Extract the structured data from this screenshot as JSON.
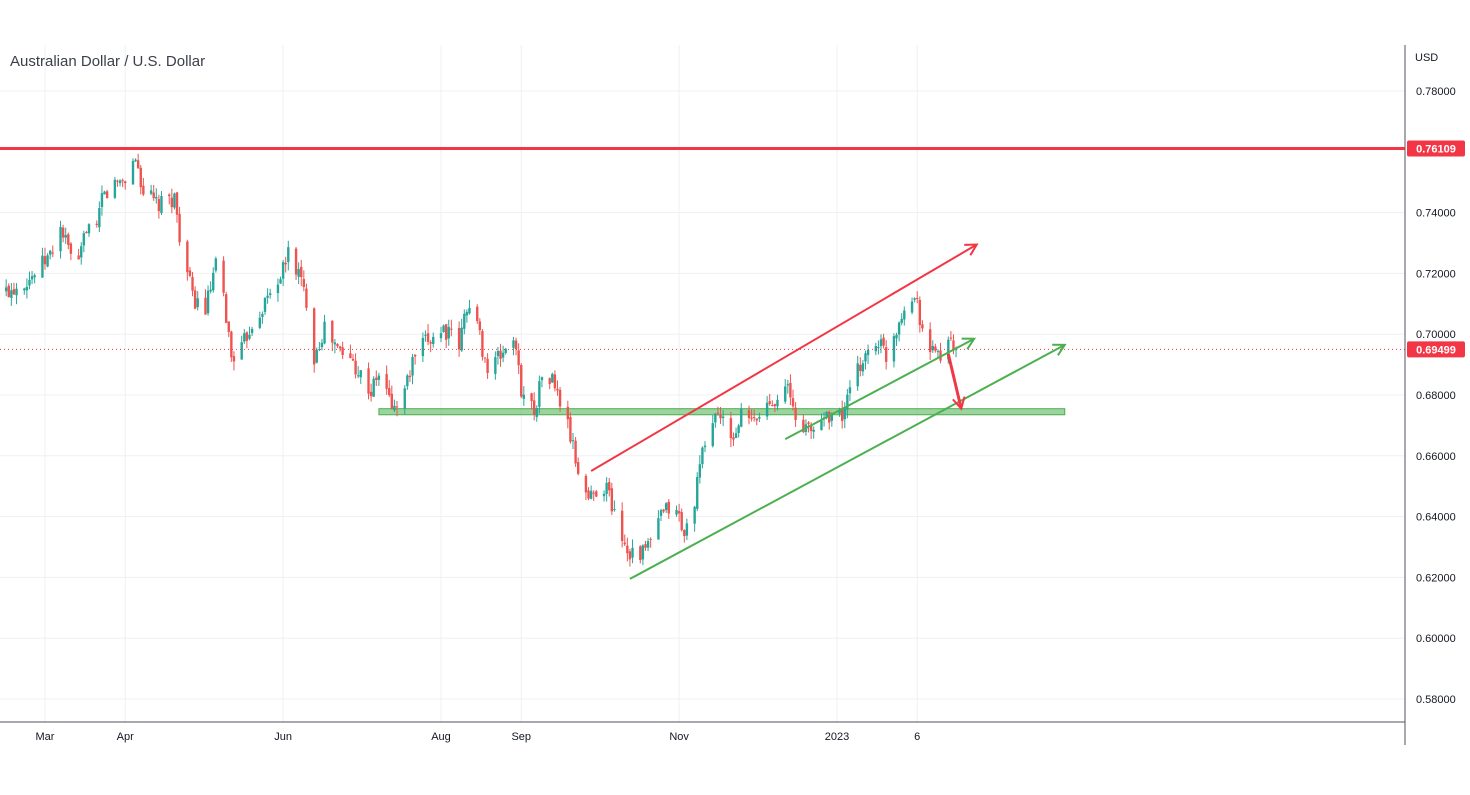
{
  "chart_data": {
    "type": "candlestick",
    "title": "Australian Dollar / U.S. Dollar",
    "currency": "USD",
    "y_ticks": [
      "0.78000",
      "0.76109",
      "0.74000",
      "0.72000",
      "0.70000",
      "0.69499",
      "0.68000",
      "0.66000",
      "0.64000",
      "0.62000",
      "0.60000",
      "0.58000"
    ],
    "y_tick_values": [
      0.78,
      0.74,
      0.72,
      0.7,
      0.68,
      0.66,
      0.64,
      0.62,
      0.6,
      0.58
    ],
    "ylim": [
      0.572,
      0.7985
    ],
    "x_ticks": [
      {
        "label": "Mar",
        "date": "2022-03-01"
      },
      {
        "label": "Apr",
        "date": "2022-04-01"
      },
      {
        "label": "Jun",
        "date": "2022-06-01"
      },
      {
        "label": "Aug",
        "date": "2022-08-01"
      },
      {
        "label": "Sep",
        "date": "2022-09-01"
      },
      {
        "label": "Nov",
        "date": "2022-11-01"
      },
      {
        "label": "2023",
        "date": "2023-01-01"
      },
      {
        "label": "6",
        "date": "2023-02-01"
      }
    ],
    "resistance_level": {
      "value": 0.76109,
      "label": "0.76109",
      "color": "#f23645"
    },
    "current_price": {
      "value": 0.69499,
      "label": "0.69499",
      "color": "#f23645"
    },
    "support_zone": {
      "low": 0.6735,
      "high": 0.6755,
      "start": "2022-07-08",
      "end": "2023-03-30",
      "color": "#4caf50"
    },
    "trendlines": [
      {
        "name": "upper-channel",
        "color": "#f23645",
        "from": {
          "date": "2022-09-28",
          "price": 0.655
        },
        "to": {
          "date": "2023-02-24",
          "price": 0.7295
        },
        "arrow": true
      },
      {
        "name": "inner-support",
        "color": "#4caf50",
        "from": {
          "date": "2022-12-12",
          "price": 0.6655
        },
        "to": {
          "date": "2023-02-23",
          "price": 0.6985
        },
        "arrow": true
      },
      {
        "name": "lower-support",
        "color": "#4caf50",
        "from": {
          "date": "2022-10-13",
          "price": 0.6195
        },
        "to": {
          "date": "2023-03-30",
          "price": 0.6965
        },
        "arrow": true
      }
    ],
    "projection": {
      "color": "#f23645",
      "from": {
        "date": "2023-02-13",
        "price": 0.6935
      },
      "to": {
        "date": "2023-02-18",
        "price": 0.6755
      }
    },
    "price_path": [
      [
        "2022-02-14",
        0.714
      ],
      [
        "2022-02-24",
        0.719
      ],
      [
        "2022-03-03",
        0.726
      ],
      [
        "2022-03-07",
        0.735
      ],
      [
        "2022-03-10",
        0.728
      ],
      [
        "2022-03-14",
        0.722
      ],
      [
        "2022-03-17",
        0.736
      ],
      [
        "2022-03-21",
        0.733
      ],
      [
        "2022-03-23",
        0.745
      ],
      [
        "2022-03-29",
        0.75
      ],
      [
        "2022-04-01",
        0.751
      ],
      [
        "2022-04-05",
        0.758
      ],
      [
        "2022-04-08",
        0.747
      ],
      [
        "2022-04-14",
        0.742
      ],
      [
        "2022-04-20",
        0.745
      ],
      [
        "2022-04-22",
        0.733
      ],
      [
        "2022-04-27",
        0.712
      ],
      [
        "2022-05-02",
        0.708
      ],
      [
        "2022-05-06",
        0.722
      ],
      [
        "2022-05-09",
        0.712
      ],
      [
        "2022-05-12",
        0.693
      ],
      [
        "2022-05-16",
        0.695
      ],
      [
        "2022-05-19",
        0.702
      ],
      [
        "2022-05-24",
        0.709
      ],
      [
        "2022-06-01",
        0.721
      ],
      [
        "2022-06-03",
        0.727
      ],
      [
        "2022-06-07",
        0.72
      ],
      [
        "2022-06-10",
        0.711
      ],
      [
        "2022-06-13",
        0.693
      ],
      [
        "2022-06-17",
        0.702
      ],
      [
        "2022-06-22",
        0.695
      ],
      [
        "2022-06-28",
        0.691
      ],
      [
        "2022-07-05",
        0.681
      ],
      [
        "2022-07-08",
        0.687
      ],
      [
        "2022-07-14",
        0.675
      ],
      [
        "2022-07-18",
        0.682
      ],
      [
        "2022-07-22",
        0.693
      ],
      [
        "2022-07-27",
        0.698
      ],
      [
        "2022-08-02",
        0.702
      ],
      [
        "2022-08-08",
        0.696
      ],
      [
        "2022-08-11",
        0.71
      ],
      [
        "2022-08-15",
        0.703
      ],
      [
        "2022-08-19",
        0.688
      ],
      [
        "2022-08-24",
        0.693
      ],
      [
        "2022-08-29",
        0.699
      ],
      [
        "2022-09-01",
        0.682
      ],
      [
        "2022-09-06",
        0.675
      ],
      [
        "2022-09-09",
        0.686
      ],
      [
        "2022-09-13",
        0.685
      ],
      [
        "2022-09-19",
        0.67
      ],
      [
        "2022-09-23",
        0.655
      ],
      [
        "2022-09-27",
        0.646
      ],
      [
        "2022-09-30",
        0.649
      ],
      [
        "2022-10-04",
        0.65
      ],
      [
        "2022-10-07",
        0.641
      ],
      [
        "2022-10-12",
        0.629
      ],
      [
        "2022-10-18",
        0.628
      ],
      [
        "2022-10-21",
        0.632
      ],
      [
        "2022-10-25",
        0.64
      ],
      [
        "2022-10-28",
        0.643
      ],
      [
        "2022-11-01",
        0.64
      ],
      [
        "2022-11-03",
        0.633
      ],
      [
        "2022-11-07",
        0.646
      ],
      [
        "2022-11-11",
        0.665
      ],
      [
        "2022-11-16",
        0.675
      ],
      [
        "2022-11-21",
        0.664
      ],
      [
        "2022-11-25",
        0.673
      ],
      [
        "2022-11-30",
        0.671
      ],
      [
        "2022-12-05",
        0.677
      ],
      [
        "2022-12-09",
        0.68
      ],
      [
        "2022-12-13",
        0.682
      ],
      [
        "2022-12-16",
        0.672
      ],
      [
        "2022-12-22",
        0.668
      ],
      [
        "2022-12-28",
        0.674
      ],
      [
        "2023-01-03",
        0.673
      ],
      [
        "2023-01-06",
        0.681
      ],
      [
        "2023-01-11",
        0.692
      ],
      [
        "2023-01-17",
        0.698
      ],
      [
        "2023-01-20",
        0.693
      ],
      [
        "2023-01-24",
        0.702
      ],
      [
        "2023-01-27",
        0.71
      ],
      [
        "2023-02-01",
        0.712
      ],
      [
        "2023-02-02",
        0.706
      ],
      [
        "2023-02-06",
        0.693
      ],
      [
        "2023-02-08",
        0.696
      ],
      [
        "2023-02-10",
        0.692
      ],
      [
        "2023-02-14",
        0.697
      ],
      [
        "2023-02-16",
        0.6925
      ]
    ]
  }
}
